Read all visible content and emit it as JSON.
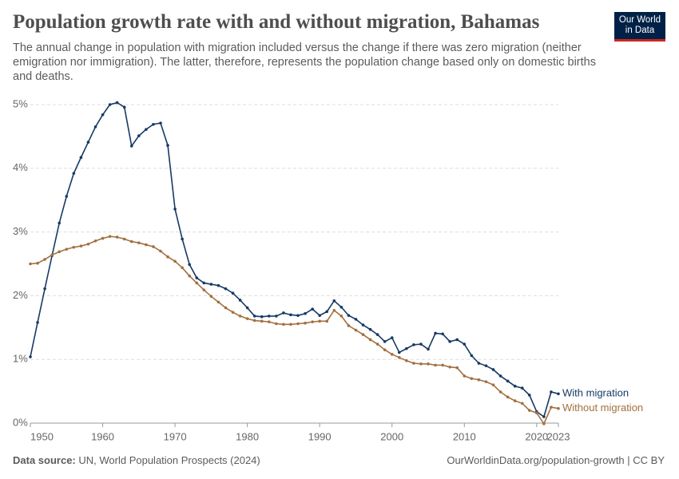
{
  "chart_data": {
    "type": "line",
    "title": "Population growth rate with and without migration, Bahamas",
    "subtitle": "The annual change in population with migration included versus the change if there was zero migration (neither emigration nor immigration). The latter, therefore, represents the population change based only on domestic births and deaths.",
    "logo": [
      "Our World",
      "in Data"
    ],
    "source_label": "Data source:",
    "source": "UN, World Population Prospects (2024)",
    "url": "OurWorldinData.org/population-growth | CC BY",
    "x": [
      1950,
      1951,
      1952,
      1953,
      1954,
      1955,
      1956,
      1957,
      1958,
      1959,
      1960,
      1961,
      1962,
      1963,
      1964,
      1965,
      1966,
      1967,
      1968,
      1969,
      1970,
      1971,
      1972,
      1973,
      1974,
      1975,
      1976,
      1977,
      1978,
      1979,
      1980,
      1981,
      1982,
      1983,
      1984,
      1985,
      1986,
      1987,
      1988,
      1989,
      1990,
      1991,
      1992,
      1993,
      1994,
      1995,
      1996,
      1997,
      1998,
      1999,
      2000,
      2001,
      2002,
      2003,
      2004,
      2005,
      2006,
      2007,
      2008,
      2009,
      2010,
      2011,
      2012,
      2013,
      2014,
      2015,
      2016,
      2017,
      2018,
      2019,
      2020,
      2021,
      2022,
      2023
    ],
    "series": [
      {
        "name": "With migration",
        "color": "#163a64",
        "values": [
          1.04,
          1.58,
          2.11,
          2.63,
          3.14,
          3.56,
          3.92,
          4.17,
          4.41,
          4.65,
          4.84,
          5.0,
          5.03,
          4.96,
          4.35,
          4.51,
          4.61,
          4.69,
          4.71,
          4.36,
          3.36,
          2.89,
          2.49,
          2.28,
          2.2,
          2.18,
          2.16,
          2.11,
          2.04,
          1.93,
          1.81,
          1.68,
          1.67,
          1.68,
          1.68,
          1.73,
          1.7,
          1.69,
          1.72,
          1.79,
          1.69,
          1.75,
          1.92,
          1.82,
          1.69,
          1.63,
          1.54,
          1.47,
          1.39,
          1.28,
          1.34,
          1.11,
          1.17,
          1.23,
          1.24,
          1.16,
          1.41,
          1.4,
          1.28,
          1.31,
          1.24,
          1.06,
          0.94,
          0.9,
          0.84,
          0.74,
          0.66,
          0.58,
          0.55,
          0.44,
          0.18,
          0.1,
          0.49,
          0.46
        ]
      },
      {
        "name": "Without migration",
        "color": "#a2703f",
        "values": [
          2.5,
          2.51,
          2.57,
          2.64,
          2.69,
          2.73,
          2.76,
          2.78,
          2.81,
          2.86,
          2.9,
          2.93,
          2.92,
          2.89,
          2.85,
          2.83,
          2.8,
          2.77,
          2.7,
          2.61,
          2.54,
          2.44,
          2.31,
          2.2,
          2.09,
          1.99,
          1.9,
          1.81,
          1.74,
          1.68,
          1.64,
          1.61,
          1.6,
          1.59,
          1.56,
          1.55,
          1.55,
          1.56,
          1.57,
          1.59,
          1.6,
          1.6,
          1.77,
          1.68,
          1.53,
          1.46,
          1.39,
          1.31,
          1.24,
          1.15,
          1.08,
          1.03,
          0.98,
          0.94,
          0.93,
          0.93,
          0.91,
          0.91,
          0.88,
          0.87,
          0.74,
          0.7,
          0.68,
          0.65,
          0.6,
          0.49,
          0.41,
          0.35,
          0.31,
          0.2,
          0.16,
          -0.01,
          0.25,
          0.23
        ]
      }
    ],
    "xlim": [
      1950,
      2023
    ],
    "xticks": [
      1950,
      1960,
      1970,
      1980,
      1990,
      2000,
      2010,
      2020,
      2023
    ],
    "ylim": [
      0,
      5
    ],
    "yticks": [
      {
        "value": 0,
        "label": "0%"
      },
      {
        "value": 1,
        "label": "1%"
      },
      {
        "value": 2,
        "label": "2%"
      },
      {
        "value": 3,
        "label": "3%"
      },
      {
        "value": 4,
        "label": "4%"
      },
      {
        "value": 5,
        "label": "5%"
      }
    ],
    "grid": true
  }
}
